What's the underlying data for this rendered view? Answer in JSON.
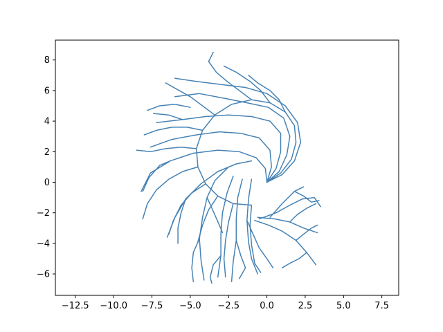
{
  "chart_data": {
    "type": "line",
    "title": "",
    "xlabel": "",
    "ylabel": "",
    "xlim": [
      -13.8,
      8.6
    ],
    "ylim": [
      -7.4,
      9.3
    ],
    "x_ticks": [
      -12.5,
      -10.0,
      -7.5,
      -5.0,
      -2.5,
      0.0,
      2.5,
      5.0,
      7.5
    ],
    "x_tick_labels": [
      "−12.5",
      "−10.0",
      "−7.5",
      "−5.0",
      "−2.5",
      "0.0",
      "2.5",
      "5.0",
      "7.5"
    ],
    "y_ticks": [
      -6,
      -4,
      -2,
      0,
      2,
      4,
      6,
      8
    ],
    "y_tick_labels": [
      "−6",
      "−4",
      "−2",
      "0",
      "2",
      "4",
      "6",
      "8"
    ],
    "grid": false,
    "line_color": "#4682b4",
    "series": [
      {
        "points": [
          [
            0.0,
            0.0
          ],
          [
            0.9,
            0.6
          ],
          [
            1.6,
            1.5
          ],
          [
            1.9,
            2.6
          ],
          [
            1.8,
            3.7
          ],
          [
            1.2,
            4.6
          ],
          [
            0.2,
            5.2
          ],
          [
            -1.0,
            5.4
          ],
          [
            -2.3,
            5.1
          ],
          [
            -3.4,
            4.4
          ],
          [
            -4.2,
            3.4
          ],
          [
            -4.6,
            2.2
          ],
          [
            -4.5,
            1.0
          ],
          [
            -4.0,
            -0.1
          ],
          [
            -3.2,
            -0.9
          ],
          [
            -2.2,
            -1.4
          ],
          [
            -1.0,
            -1.5
          ]
        ]
      }
    ],
    "branches": [
      [
        [
          0.0,
          0.0
        ],
        [
          1.0,
          0.5
        ],
        [
          1.8,
          1.4
        ],
        [
          2.2,
          2.6
        ],
        [
          2.0,
          3.9
        ],
        [
          1.2,
          5.0
        ],
        [
          0.0,
          5.8
        ],
        [
          -1.4,
          6.2
        ],
        [
          -3.0,
          6.4
        ],
        [
          -4.6,
          6.6
        ],
        [
          -6.0,
          6.8
        ]
      ],
      [
        [
          0.0,
          0.0
        ],
        [
          0.8,
          0.7
        ],
        [
          1.3,
          1.8
        ],
        [
          1.5,
          3.0
        ],
        [
          1.1,
          4.2
        ],
        [
          0.1,
          4.9
        ],
        [
          -1.3,
          5.2
        ],
        [
          -2.8,
          5.5
        ],
        [
          -4.4,
          5.8
        ],
        [
          -6.0,
          5.6
        ]
      ],
      [
        [
          0.0,
          0.0
        ],
        [
          0.6,
          0.9
        ],
        [
          0.9,
          2.0
        ],
        [
          0.9,
          3.2
        ],
        [
          0.2,
          4.0
        ],
        [
          -1.0,
          4.3
        ],
        [
          -2.5,
          4.4
        ],
        [
          -4.0,
          4.3
        ],
        [
          -5.5,
          4.1
        ],
        [
          -7.2,
          3.9
        ]
      ],
      [
        [
          0.0,
          0.0
        ],
        [
          0.3,
          1.0
        ],
        [
          0.2,
          2.1
        ],
        [
          -0.5,
          2.9
        ],
        [
          -1.7,
          3.2
        ],
        [
          -3.1,
          3.3
        ],
        [
          -4.6,
          3.1
        ],
        [
          -6.2,
          2.8
        ],
        [
          -7.6,
          2.3
        ]
      ],
      [
        [
          0.0,
          0.0
        ],
        [
          -0.1,
          0.9
        ],
        [
          -0.7,
          1.6
        ],
        [
          -1.8,
          2.0
        ],
        [
          -3.2,
          2.1
        ],
        [
          -4.8,
          1.9
        ],
        [
          -6.3,
          1.4
        ],
        [
          -7.6,
          0.6
        ],
        [
          -8.2,
          -0.6
        ]
      ],
      [
        [
          -1.0,
          1.4
        ],
        [
          -2.0,
          1.2
        ],
        [
          -3.2,
          0.7
        ],
        [
          -4.3,
          -0.1
        ],
        [
          -5.3,
          -1.1
        ],
        [
          -6.0,
          -2.3
        ],
        [
          -6.5,
          -3.6
        ]
      ],
      [
        [
          -2.5,
          1.0
        ],
        [
          -3.4,
          0.1
        ],
        [
          -3.9,
          -1.0
        ],
        [
          -4.2,
          -2.3
        ],
        [
          -4.4,
          -3.7
        ],
        [
          -4.3,
          -5.1
        ],
        [
          -4.1,
          -6.4
        ]
      ],
      [
        [
          -2.2,
          0.4
        ],
        [
          -2.6,
          -0.7
        ],
        [
          -2.9,
          -2.0
        ],
        [
          -3.0,
          -3.4
        ],
        [
          -3.0,
          -4.8
        ],
        [
          -3.2,
          -6.2
        ]
      ],
      [
        [
          -1.6,
          0.2
        ],
        [
          -1.9,
          -1.0
        ],
        [
          -2.0,
          -2.4
        ],
        [
          -2.0,
          -3.8
        ],
        [
          -2.2,
          -5.2
        ],
        [
          -2.3,
          -6.5
        ]
      ],
      [
        [
          -1.0,
          0.2
        ],
        [
          -1.2,
          -1.1
        ],
        [
          -1.3,
          -2.5
        ],
        [
          -1.2,
          -3.9
        ],
        [
          -1.0,
          -5.0
        ],
        [
          -0.6,
          -6.0
        ]
      ],
      [
        [
          -0.8,
          -2.5
        ],
        [
          0.1,
          -2.8
        ],
        [
          1.0,
          -3.2
        ],
        [
          1.9,
          -3.8
        ],
        [
          2.6,
          -4.6
        ],
        [
          3.2,
          -5.4
        ]
      ],
      [
        [
          -0.6,
          -2.3
        ],
        [
          0.5,
          -2.4
        ],
        [
          1.5,
          -2.6
        ],
        [
          2.4,
          -3.0
        ],
        [
          3.3,
          -3.3
        ]
      ],
      [
        [
          -0.5,
          -2.4
        ],
        [
          0.6,
          -2.0
        ],
        [
          1.5,
          -1.5
        ],
        [
          2.3,
          -1.1
        ],
        [
          3.1,
          -1.0
        ],
        [
          3.5,
          -1.6
        ]
      ],
      [
        [
          0.2,
          -2.3
        ],
        [
          1.0,
          -1.4
        ],
        [
          1.8,
          -0.6
        ],
        [
          2.4,
          -0.3
        ]
      ],
      [
        [
          -3.4,
          4.4
        ],
        [
          -4.2,
          5.0
        ],
        [
          -5.0,
          5.6
        ],
        [
          -5.9,
          6.1
        ],
        [
          -6.6,
          6.5
        ]
      ],
      [
        [
          -4.2,
          3.4
        ],
        [
          -5.2,
          3.6
        ],
        [
          -6.2,
          3.6
        ],
        [
          -7.2,
          3.4
        ],
        [
          -8.0,
          3.1
        ]
      ],
      [
        [
          -4.6,
          2.2
        ],
        [
          -5.6,
          2.3
        ],
        [
          -6.6,
          2.2
        ],
        [
          -7.6,
          2.0
        ],
        [
          -8.5,
          2.1
        ]
      ],
      [
        [
          -4.5,
          1.0
        ],
        [
          -5.5,
          0.7
        ],
        [
          -6.4,
          0.2
        ],
        [
          -7.2,
          -0.5
        ],
        [
          -7.8,
          -1.4
        ],
        [
          -8.1,
          -2.4
        ]
      ],
      [
        [
          -4.0,
          -0.1
        ],
        [
          -4.9,
          -0.7
        ],
        [
          -5.6,
          -1.5
        ],
        [
          -6.1,
          -2.5
        ],
        [
          -6.4,
          -3.4
        ]
      ],
      [
        [
          -3.2,
          -0.9
        ],
        [
          -3.8,
          -1.8
        ],
        [
          -4.2,
          -2.8
        ],
        [
          -4.5,
          -3.9
        ]
      ],
      [
        [
          -2.2,
          -1.4
        ],
        [
          -2.5,
          -2.6
        ],
        [
          -2.7,
          -3.8
        ],
        [
          -2.8,
          -5.0
        ],
        [
          -2.7,
          -6.2
        ]
      ],
      [
        [
          -1.0,
          -1.5
        ],
        [
          -1.1,
          -2.8
        ],
        [
          -1.0,
          -4.1
        ],
        [
          -0.8,
          -5.3
        ],
        [
          -0.4,
          -5.9
        ]
      ],
      [
        [
          -1.0,
          5.4
        ],
        [
          -1.8,
          6.0
        ],
        [
          -2.6,
          6.6
        ],
        [
          -3.3,
          7.2
        ],
        [
          -3.8,
          7.9
        ],
        [
          -3.5,
          8.5
        ]
      ],
      [
        [
          0.2,
          5.2
        ],
        [
          -0.4,
          6.0
        ],
        [
          -1.1,
          6.6
        ],
        [
          -2.0,
          7.2
        ],
        [
          -2.8,
          7.6
        ]
      ],
      [
        [
          1.2,
          4.6
        ],
        [
          0.8,
          5.4
        ],
        [
          0.2,
          6.0
        ],
        [
          -0.6,
          6.5
        ],
        [
          -1.2,
          7.0
        ]
      ],
      [
        [
          -5.0,
          4.9
        ],
        [
          -6.0,
          5.1
        ],
        [
          -7.0,
          5.0
        ],
        [
          -7.8,
          4.7
        ]
      ],
      [
        [
          -5.5,
          4.1
        ],
        [
          -6.4,
          4.4
        ],
        [
          -7.4,
          4.5
        ]
      ],
      [
        [
          -6.3,
          1.4
        ],
        [
          -7.0,
          1.1
        ],
        [
          -7.7,
          0.3
        ],
        [
          -8.1,
          -0.6
        ]
      ],
      [
        [
          -5.3,
          -1.1
        ],
        [
          -5.6,
          -2.0
        ],
        [
          -5.8,
          -3.0
        ],
        [
          -5.8,
          -4.0
        ]
      ],
      [
        [
          -4.4,
          -3.7
        ],
        [
          -4.8,
          -4.6
        ],
        [
          -4.9,
          -5.6
        ],
        [
          -4.8,
          -6.5
        ]
      ],
      [
        [
          -3.0,
          -4.8
        ],
        [
          -3.5,
          -5.4
        ],
        [
          -3.7,
          -6.2
        ],
        [
          -3.6,
          -6.6
        ]
      ],
      [
        [
          -2.0,
          -3.8
        ],
        [
          -1.7,
          -4.8
        ],
        [
          -1.4,
          -5.6
        ],
        [
          -1.8,
          -6.3
        ]
      ],
      [
        [
          1.9,
          -3.8
        ],
        [
          2.4,
          -3.4
        ],
        [
          2.9,
          -3.0
        ],
        [
          3.3,
          -2.8
        ]
      ],
      [
        [
          1.5,
          -2.6
        ],
        [
          2.0,
          -2.1
        ],
        [
          2.6,
          -1.7
        ],
        [
          3.2,
          -1.4
        ]
      ],
      [
        [
          1.8,
          -0.6
        ],
        [
          2.4,
          -0.9
        ],
        [
          2.9,
          -1.3
        ],
        [
          3.4,
          -1.2
        ]
      ],
      [
        [
          2.6,
          -4.6
        ],
        [
          2.1,
          -5.0
        ],
        [
          1.5,
          -5.3
        ],
        [
          1.0,
          -5.6
        ]
      ],
      [
        [
          -1.3,
          -2.5
        ],
        [
          -0.9,
          -3.4
        ],
        [
          -0.5,
          -4.3
        ],
        [
          0.0,
          -5.0
        ],
        [
          0.4,
          -5.6
        ]
      ],
      [
        [
          -3.9,
          -1.0
        ],
        [
          -3.5,
          -1.9
        ],
        [
          -3.1,
          -2.8
        ],
        [
          -2.9,
          -3.3
        ]
      ]
    ]
  }
}
